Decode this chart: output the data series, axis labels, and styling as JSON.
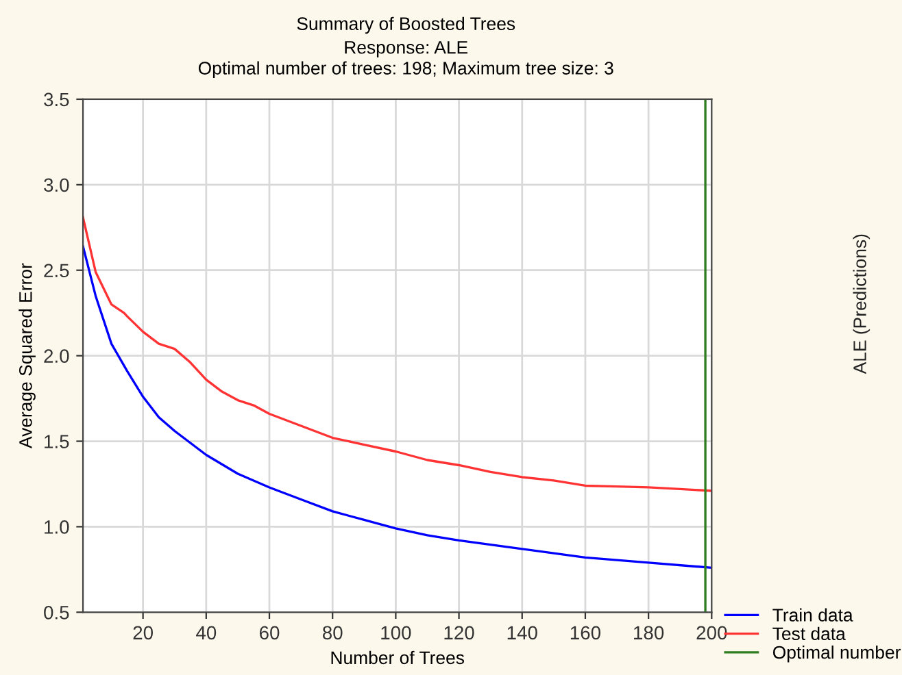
{
  "chart_data": {
    "type": "line",
    "title": "Summary of Boosted Trees",
    "subtitle": "Response: ALE\nOptimal number of trees: 198; Maximum tree size: 3",
    "xlabel": "Number of Trees",
    "ylabel": "Average Squared Error",
    "annotations": [
      "ALE (Predictions)"
    ],
    "xlim": [
      1,
      200
    ],
    "xticks": [
      20,
      40,
      60,
      80,
      100,
      120,
      140,
      160,
      180,
      200
    ],
    "ylim": [
      0.5,
      3.5
    ],
    "yticks": [
      {
        "value": 0.5,
        "label": "0.5"
      },
      {
        "value": 1.0,
        "label": "1.0"
      },
      {
        "value": 1.5,
        "label": "1.5"
      },
      {
        "value": 2.0,
        "label": "2.0"
      },
      {
        "value": 2.5,
        "label": "2.5"
      },
      {
        "value": 3.0,
        "label": "3.0"
      },
      {
        "value": 3.5,
        "label": "3.5"
      }
    ],
    "grid": true,
    "legend": "bottom right",
    "marker": "none",
    "line_style": "solid",
    "series": [
      {
        "name": "Train data",
        "color": "#0000ff",
        "x": [
          1,
          5,
          10,
          15,
          20,
          25,
          30,
          35,
          40,
          50,
          60,
          70,
          80,
          90,
          100,
          110,
          120,
          140,
          160,
          180,
          200
        ],
        "values": [
          2.64,
          2.35,
          2.07,
          1.91,
          1.76,
          1.64,
          1.56,
          1.49,
          1.42,
          1.31,
          1.23,
          1.16,
          1.09,
          1.04,
          0.99,
          0.95,
          0.92,
          0.87,
          0.82,
          0.79,
          0.76
        ]
      },
      {
        "name": "Test data",
        "color": "#ff3333",
        "x": [
          1,
          5,
          10,
          14,
          15,
          20,
          25,
          30,
          35,
          40,
          45,
          50,
          55,
          60,
          70,
          80,
          90,
          100,
          110,
          120,
          130,
          140,
          150,
          160,
          170,
          180,
          190,
          200
        ],
        "values": [
          2.81,
          2.49,
          2.3,
          2.25,
          2.23,
          2.14,
          2.07,
          2.04,
          1.96,
          1.86,
          1.79,
          1.74,
          1.71,
          1.66,
          1.59,
          1.52,
          1.48,
          1.44,
          1.39,
          1.36,
          1.32,
          1.29,
          1.27,
          1.24,
          1.235,
          1.23,
          1.22,
          1.21
        ]
      }
    ],
    "ref_lines": [
      {
        "axis": "x",
        "value": 198,
        "label": "Optimal number",
        "color": "#2e7d1e"
      }
    ]
  }
}
